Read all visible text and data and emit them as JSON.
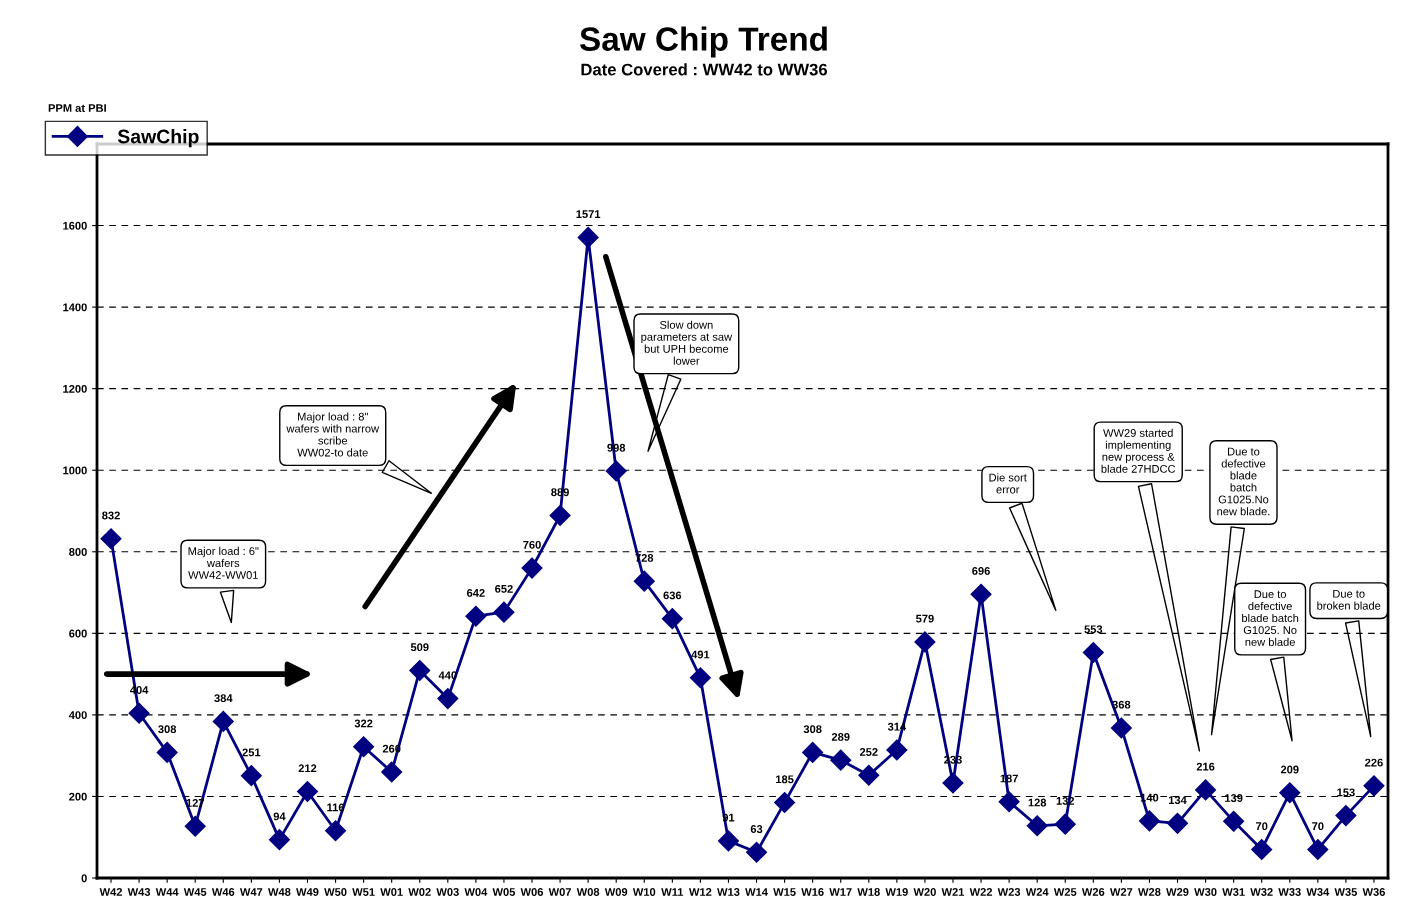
{
  "chart_data": {
    "type": "line",
    "title": "Saw Chip Trend",
    "subtitle": "Date Covered : WW42 to WW36",
    "ylabel": "PPM at PBI",
    "categories": [
      "W42",
      "W43",
      "W44",
      "W45",
      "W46",
      "W47",
      "W48",
      "W49",
      "W50",
      "W51",
      "W01",
      "W02",
      "W03",
      "W04",
      "W05",
      "W06",
      "W07",
      "W08",
      "W09",
      "W10",
      "W11",
      "W12",
      "W13",
      "W14",
      "W15",
      "W16",
      "W17",
      "W18",
      "W19",
      "W20",
      "W21",
      "W22",
      "W23",
      "W24",
      "W25",
      "W26",
      "W27",
      "W28",
      "W29",
      "W30",
      "W31",
      "W32",
      "W33",
      "W34",
      "W35",
      "W36"
    ],
    "series": [
      {
        "name": "SawChip",
        "color": "#000080",
        "values": [
          832,
          404,
          308,
          127,
          384,
          251,
          94,
          212,
          116,
          322,
          260,
          509,
          440,
          642,
          652,
          760,
          889,
          1571,
          998,
          728,
          636,
          491,
          91,
          63,
          185,
          308,
          289,
          252,
          314,
          579,
          233,
          696,
          187,
          128,
          132,
          553,
          368,
          140,
          134,
          216,
          139,
          70,
          209,
          70,
          153,
          226
        ]
      }
    ],
    "ylim": [
      0,
      1800
    ],
    "yticks": [
      0,
      200,
      400,
      600,
      800,
      1000,
      1200,
      1400,
      1600
    ],
    "grid": "y",
    "legend": "top left",
    "marker": "diamond",
    "line_style": "solid",
    "data_labels": true,
    "annotations": [
      "Major load : 6\"\nwafers\nWW42-WW01",
      "Major load : 8\"\nwafers with narrow\nscribe\nWW02-to date",
      "Slow down\nparameters at saw\nbut UPH become\nlower",
      "Die sort\nerror",
      "WW29 started\nimplementing\nnew process &\nblade 27HDCC",
      "Due to\ndefective\nblade\nbatch\nG1025.No\nnew blade.",
      "Due to\ndefective\nblade batch\nG1025. No\nnew blade",
      "Due to\nbroken blade"
    ]
  }
}
